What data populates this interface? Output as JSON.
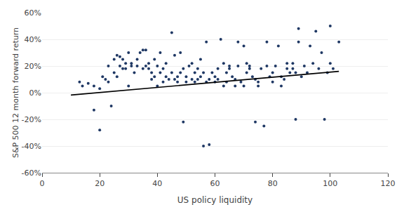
{
  "chart_data": {
    "type": "scatter",
    "xlabel": "US policy liquidity",
    "ylabel": "S&P 500 12 month forward return",
    "xlim": [
      0,
      120
    ],
    "ylim": [
      -0.6,
      0.6
    ],
    "xticks": [
      0,
      20,
      40,
      60,
      80,
      100,
      120
    ],
    "yticks": [
      {
        "value": -0.6,
        "label": "-60%"
      },
      {
        "value": -0.4,
        "label": "-40%"
      },
      {
        "value": -0.2,
        "label": "-20%"
      },
      {
        "value": 0.0,
        "label": "0%"
      },
      {
        "value": 0.2,
        "label": "20%"
      },
      {
        "value": 0.4,
        "label": "40%"
      },
      {
        "value": 0.6,
        "label": "60%"
      }
    ],
    "grid": true,
    "series": [
      {
        "type": "scatter",
        "color": "#1f3864",
        "marker": "circle",
        "x": [
          13,
          14,
          16,
          18,
          18,
          20,
          20,
          21,
          22,
          23,
          23,
          24,
          25,
          25,
          26,
          26,
          27,
          27,
          28,
          28,
          29,
          29,
          30,
          30,
          31,
          31,
          32,
          33,
          33,
          34,
          35,
          35,
          36,
          36,
          37,
          37,
          38,
          38,
          39,
          39,
          40,
          40,
          41,
          41,
          42,
          42,
          43,
          43,
          44,
          45,
          45,
          46,
          46,
          47,
          47,
          48,
          48,
          49,
          49,
          50,
          50,
          51,
          52,
          52,
          53,
          53,
          54,
          54,
          55,
          55,
          56,
          56,
          57,
          57,
          58,
          58,
          59,
          60,
          60,
          61,
          61,
          62,
          63,
          63,
          64,
          64,
          65,
          65,
          66,
          67,
          67,
          68,
          68,
          69,
          70,
          70,
          71,
          71,
          72,
          72,
          73,
          74,
          74,
          75,
          75,
          76,
          77,
          78,
          78,
          79,
          80,
          80,
          81,
          82,
          83,
          83,
          84,
          85,
          85,
          86,
          87,
          87,
          88,
          88,
          89,
          89,
          90,
          91,
          92,
          93,
          94,
          95,
          96,
          97,
          98,
          99,
          100,
          100,
          101,
          103
        ],
        "values": [
          0.08,
          0.05,
          0.07,
          -0.13,
          0.05,
          -0.28,
          0.03,
          0.12,
          0.1,
          0.2,
          0.08,
          -0.1,
          0.25,
          0.15,
          0.28,
          0.12,
          0.2,
          0.27,
          0.25,
          0.18,
          0.22,
          0.18,
          0.05,
          0.3,
          0.2,
          0.22,
          0.15,
          0.25,
          0.2,
          0.3,
          0.18,
          0.32,
          0.2,
          0.32,
          0.22,
          0.18,
          0.15,
          0.1,
          0.25,
          0.12,
          0.05,
          0.2,
          0.15,
          0.3,
          0.08,
          0.18,
          0.12,
          0.22,
          0.1,
          0.45,
          0.15,
          0.28,
          0.1,
          0.12,
          0.08,
          0.3,
          0.15,
          -0.22,
          0.18,
          0.12,
          0.08,
          0.2,
          0.1,
          0.22,
          0.15,
          0.08,
          0.18,
          0.1,
          0.25,
          0.12,
          -0.4,
          0.15,
          0.08,
          0.38,
          -0.39,
          0.1,
          0.15,
          0.08,
          0.12,
          0.1,
          0.18,
          0.4,
          0.05,
          0.22,
          0.15,
          0.08,
          0.18,
          0.2,
          0.12,
          0.05,
          0.1,
          0.38,
          0.2,
          0.08,
          0.35,
          0.05,
          0.22,
          0.15,
          0.18,
          0.2,
          0.12,
          -0.22,
          0.1,
          0.08,
          0.05,
          0.18,
          -0.25,
          0.2,
          0.38,
          0.12,
          0.15,
          0.08,
          0.2,
          0.35,
          0.12,
          0.05,
          0.1,
          0.22,
          0.18,
          0.15,
          0.22,
          0.18,
          -0.2,
          0.15,
          0.38,
          0.48,
          0.12,
          0.2,
          0.15,
          0.35,
          0.22,
          0.46,
          0.18,
          0.3,
          -0.2,
          0.15,
          0.5,
          0.22,
          0.18,
          0.38
        ]
      },
      {
        "type": "line",
        "color": "#000000",
        "line_style": "solid",
        "x": [
          10,
          103
        ],
        "values": [
          -0.018,
          0.16
        ]
      }
    ]
  }
}
